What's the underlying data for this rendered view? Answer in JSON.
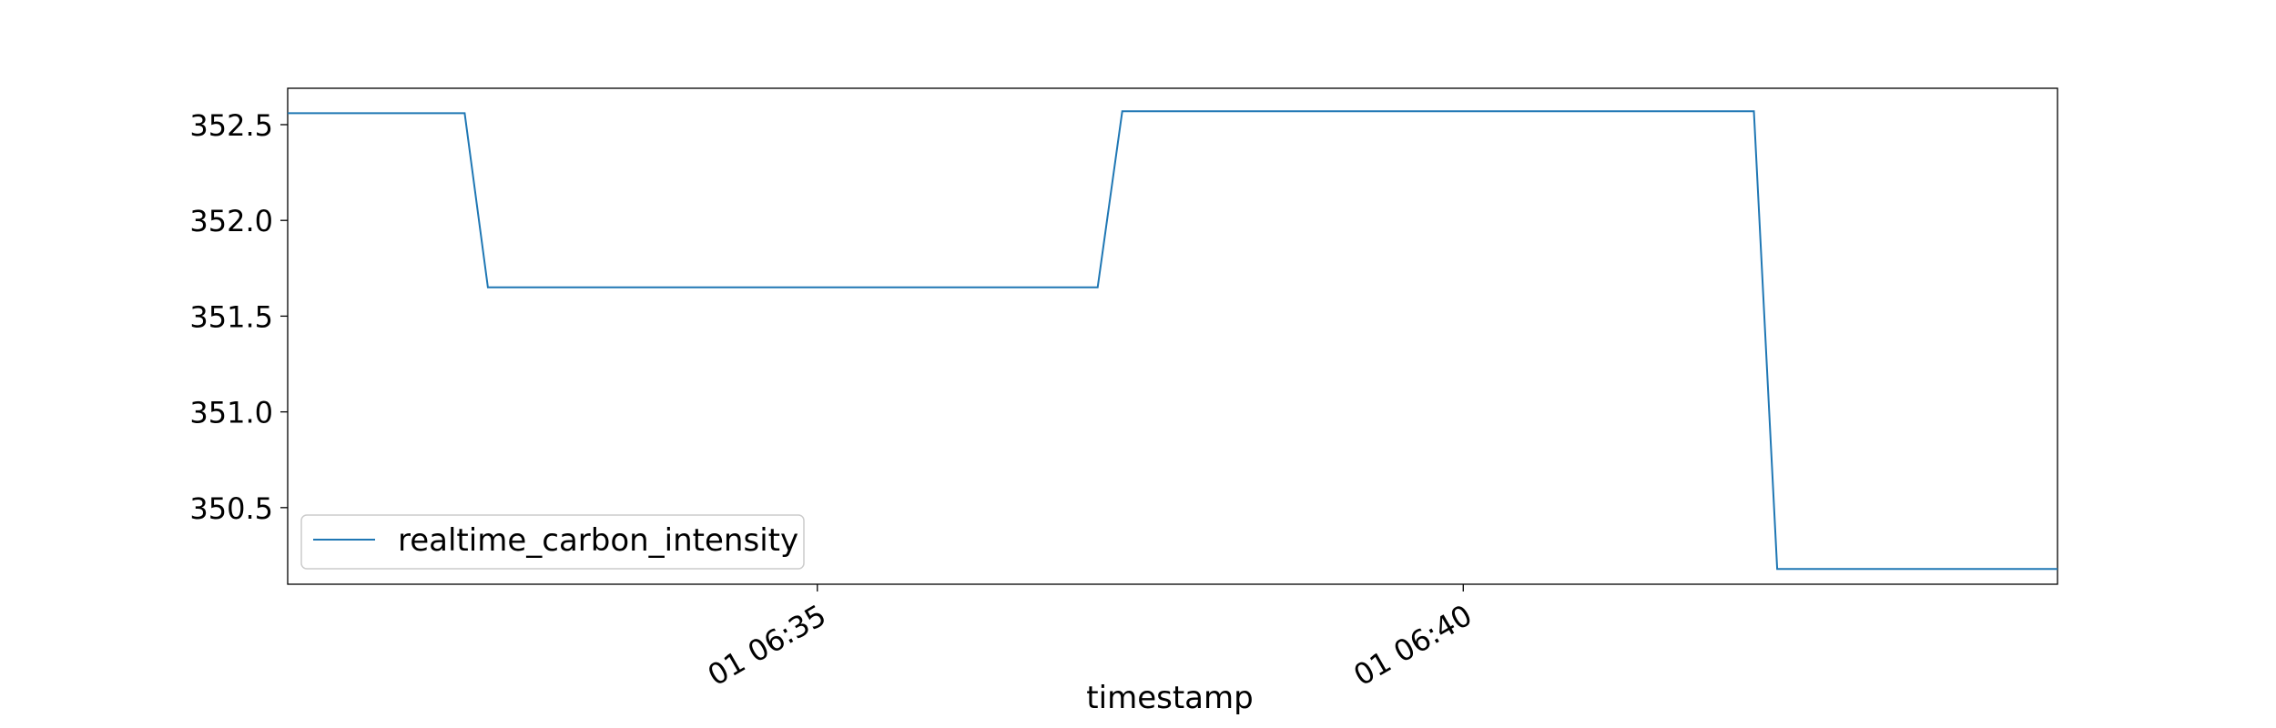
{
  "chart_data": {
    "type": "line",
    "xlabel": "timestamp",
    "ylabel": "",
    "x_ticks": [
      {
        "label": "01 06:35",
        "minutes": 35
      },
      {
        "label": "01 06:40",
        "minutes": 40
      }
    ],
    "y_ticks": [
      350.5,
      351.0,
      351.5,
      352.0,
      352.5
    ],
    "xlim_minutes": [
      30.9,
      44.6
    ],
    "ylim": [
      350.1,
      352.69
    ],
    "grid": false,
    "legend_position": "lower-left",
    "series": [
      {
        "name": "realtime_carbon_intensity",
        "color": "#1f77b4",
        "points": [
          {
            "t": 30.9,
            "v": 352.56
          },
          {
            "t": 32.27,
            "v": 352.56
          },
          {
            "t": 32.45,
            "v": 351.65
          },
          {
            "t": 37.17,
            "v": 351.65
          },
          {
            "t": 37.36,
            "v": 352.57
          },
          {
            "t": 42.25,
            "v": 352.57
          },
          {
            "t": 42.43,
            "v": 350.18
          },
          {
            "t": 44.6,
            "v": 350.18
          }
        ]
      }
    ]
  }
}
